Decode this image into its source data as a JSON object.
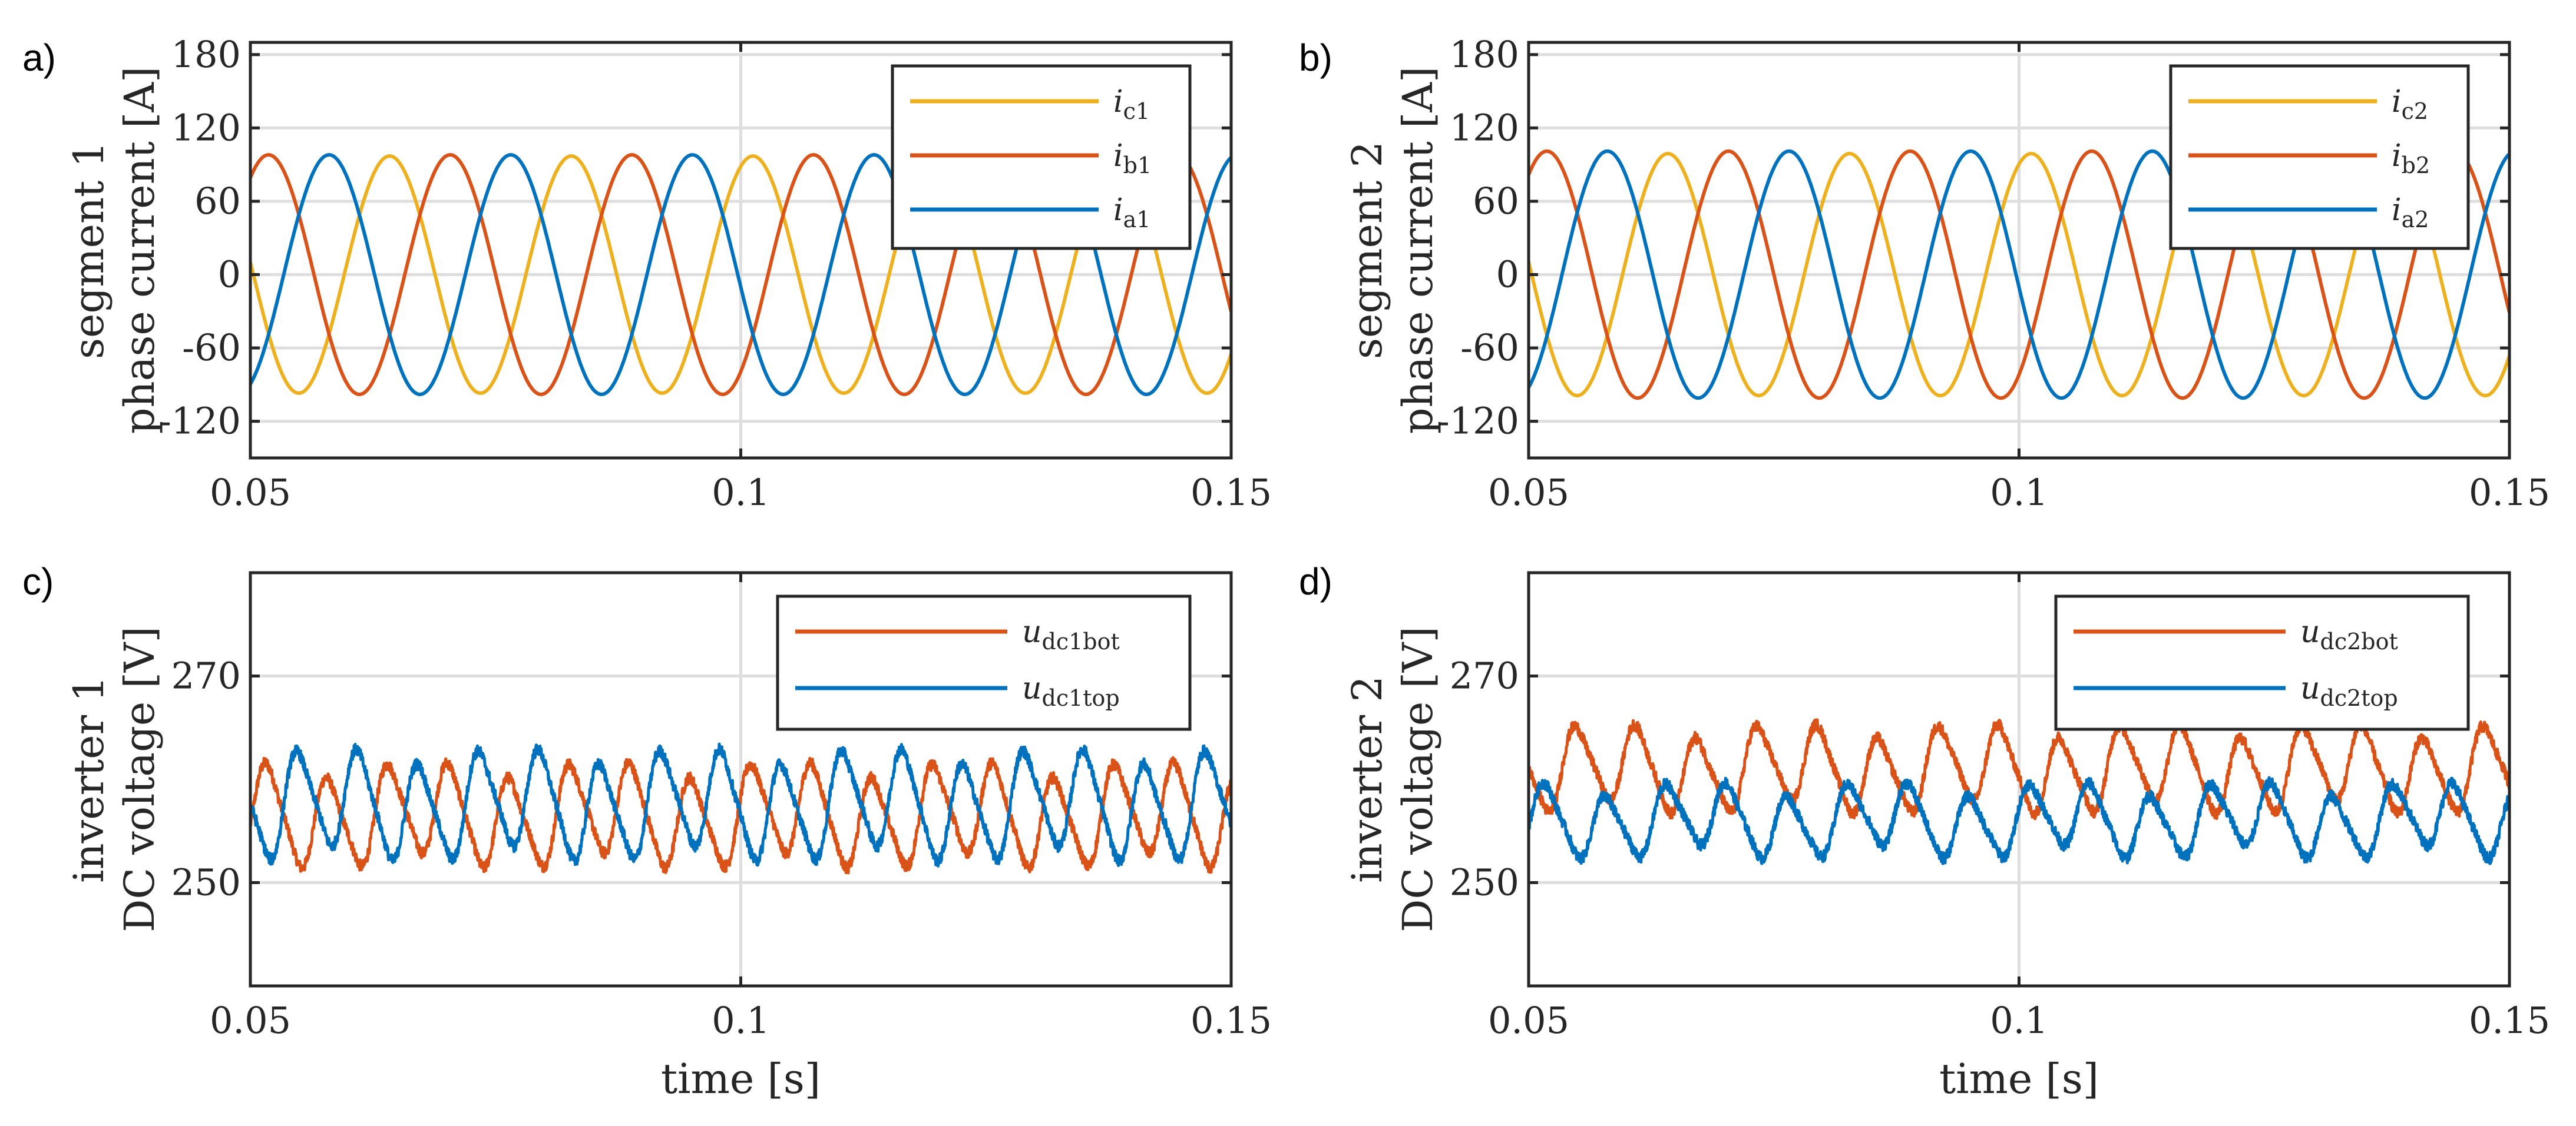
{
  "colors": {
    "a": "#0072BD",
    "b": "#D95319",
    "c": "#EDB120",
    "grid": "#dedede",
    "axis": "#262626"
  },
  "chart_data": [
    {
      "id": "a",
      "panel_label": "a)",
      "type": "line",
      "ylabel_lines": [
        "segment 1",
        "phase current [A]"
      ],
      "xlabel": "",
      "xlim": [
        0.05,
        0.15
      ],
      "ylim": [
        -150,
        190
      ],
      "xticks": [
        0.05,
        0.1,
        0.15
      ],
      "xtick_labels": [
        "0.05",
        "0.1",
        "0.15"
      ],
      "yticks": [
        180,
        120,
        60,
        0,
        -60,
        -120
      ],
      "ytick_labels": [
        "180",
        "120",
        "60",
        "0",
        "-60",
        "-120"
      ],
      "legend_position": "top-right",
      "series": [
        {
          "name": "ic1",
          "legend_main": "i",
          "legend_sub": "c1",
          "color_key": "c",
          "kind": "sine",
          "amplitude": 97,
          "frequency_hz": 54,
          "phase_deg": 240,
          "t0": 0.0534,
          "noise": 0
        },
        {
          "name": "ib1",
          "legend_main": "i",
          "legend_sub": "b1",
          "color_key": "b",
          "kind": "sine",
          "amplitude": 98,
          "frequency_hz": 54,
          "phase_deg": 120,
          "t0": 0.0534,
          "noise": 0
        },
        {
          "name": "ia1",
          "legend_main": "i",
          "legend_sub": "a1",
          "color_key": "a",
          "kind": "sine",
          "amplitude": 98,
          "frequency_hz": 54,
          "phase_deg": 0,
          "t0": 0.0534,
          "noise": 0
        }
      ]
    },
    {
      "id": "b",
      "panel_label": "b)",
      "type": "line",
      "ylabel_lines": [
        "segment 2",
        "phase current [A]"
      ],
      "xlabel": "",
      "xlim": [
        0.05,
        0.15
      ],
      "ylim": [
        -150,
        190
      ],
      "xticks": [
        0.05,
        0.1,
        0.15
      ],
      "xtick_labels": [
        "0.05",
        "0.1",
        "0.15"
      ],
      "yticks": [
        180,
        120,
        60,
        0,
        -60,
        -120
      ],
      "ytick_labels": [
        "180",
        "120",
        "60",
        "0",
        "-60",
        "-120"
      ],
      "legend_position": "top-right",
      "series": [
        {
          "name": "ic2",
          "legend_main": "i",
          "legend_sub": "c2",
          "color_key": "c",
          "kind": "sine",
          "amplitude": 99,
          "frequency_hz": 54,
          "phase_deg": 240,
          "t0": 0.0534,
          "noise": 0
        },
        {
          "name": "ib2",
          "legend_main": "i",
          "legend_sub": "b2",
          "color_key": "b",
          "kind": "sine",
          "amplitude": 101,
          "frequency_hz": 54,
          "phase_deg": 120,
          "t0": 0.0534,
          "noise": 0
        },
        {
          "name": "ia2",
          "legend_main": "i",
          "legend_sub": "a2",
          "color_key": "a",
          "kind": "sine",
          "amplitude": 101,
          "frequency_hz": 54,
          "phase_deg": 0,
          "t0": 0.0534,
          "noise": 0
        }
      ]
    },
    {
      "id": "c",
      "panel_label": "c)",
      "type": "line",
      "ylabel_lines": [
        "inverter 1",
        "DC voltage [V]"
      ],
      "xlabel": "time [s]",
      "xlim": [
        0.05,
        0.15
      ],
      "ylim": [
        240,
        280
      ],
      "xticks": [
        0.05,
        0.1,
        0.15
      ],
      "xtick_labels": [
        "0.05",
        "0.1",
        "0.15"
      ],
      "yticks": [
        270,
        250
      ],
      "ytick_labels": [
        "270",
        "250"
      ],
      "legend_position": "top-right",
      "series": [
        {
          "name": "udc1bot",
          "legend_main": "u",
          "legend_sub": "dc1bot",
          "color_key": "b",
          "kind": "ripple",
          "offset": 256.5,
          "ripple_amplitude": 4.3,
          "frequency_hz": 162,
          "phase_deg": 180,
          "t0": 0.0534,
          "slow_amplitude": 0.9,
          "noise": 0.55
        },
        {
          "name": "udc1top",
          "legend_main": "u",
          "legend_sub": "dc1top",
          "color_key": "a",
          "kind": "ripple",
          "offset": 257.5,
          "ripple_amplitude": 4.6,
          "frequency_hz": 162,
          "phase_deg": 0,
          "t0": 0.0534,
          "slow_amplitude": 0.9,
          "noise": 0.55
        }
      ]
    },
    {
      "id": "d",
      "panel_label": "d)",
      "type": "line",
      "ylabel_lines": [
        "inverter 2",
        "DC voltage [V]"
      ],
      "xlabel": "time [s]",
      "xlim": [
        0.05,
        0.15
      ],
      "ylim": [
        240,
        280
      ],
      "xticks": [
        0.05,
        0.1,
        0.15
      ],
      "xtick_labels": [
        "0.05",
        "0.1",
        "0.15"
      ],
      "yticks": [
        270,
        250
      ],
      "ytick_labels": [
        "270",
        "250"
      ],
      "legend_position": "top-right",
      "series": [
        {
          "name": "udc2bot",
          "legend_main": "u",
          "legend_sub": "dc2bot",
          "color_key": "b",
          "kind": "ripple",
          "offset": 261,
          "ripple_amplitude": 3.6,
          "frequency_hz": 162,
          "phase_deg": 0,
          "t0": 0.0534,
          "slow_amplitude": 0.8,
          "noise": 0.55
        },
        {
          "name": "udc2top",
          "legend_main": "u",
          "legend_sub": "dc2top",
          "color_key": "a",
          "kind": "ripple",
          "offset": 256,
          "ripple_amplitude": 3.0,
          "frequency_hz": 162,
          "phase_deg": 180,
          "t0": 0.0534,
          "slow_amplitude": 0.8,
          "noise": 0.55
        }
      ]
    }
  ]
}
